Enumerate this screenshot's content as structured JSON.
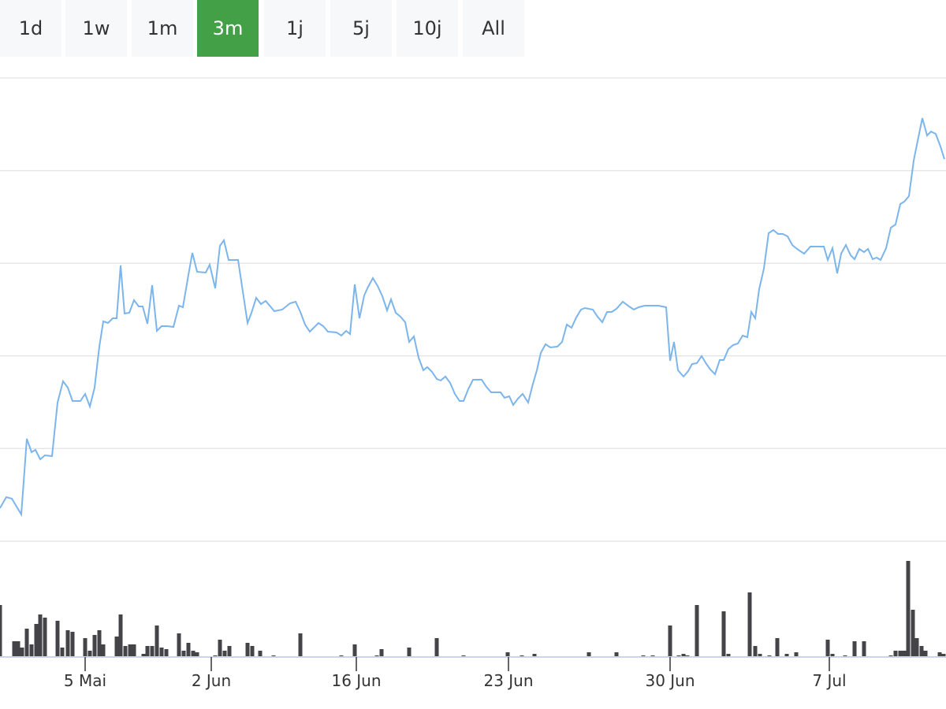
{
  "buttons": [
    "1d",
    "1w",
    "1m",
    "3m",
    "1j",
    "5j",
    "10j",
    "All"
  ],
  "active_button": 3,
  "chart_data": {
    "type": "stock",
    "grid": true,
    "xlim": [
      0,
      1200
    ],
    "xticks": [
      {
        "value": 108,
        "label": "5 Mai"
      },
      {
        "value": 268,
        "label": "2 Jun"
      },
      {
        "value": 452,
        "label": "16 Jun"
      },
      {
        "value": 645,
        "label": "23 Jun"
      },
      {
        "value": 850,
        "label": "30 Jun"
      },
      {
        "value": 1052,
        "label": "7 Jul"
      }
    ],
    "ylim": [
      0,
      588
    ],
    "yticks": [
      0,
      117.6,
      235.2,
      352.8,
      470.4,
      588
    ],
    "x": [
      0,
      8,
      15,
      27,
      34,
      40,
      45,
      51,
      57,
      66,
      73,
      80,
      86,
      92,
      102,
      108,
      114,
      120,
      126,
      131,
      137,
      143,
      148,
      153,
      158,
      164,
      170,
      176,
      181,
      187,
      193,
      199,
      205,
      212,
      220,
      227,
      232,
      239,
      244,
      250,
      261,
      266,
      273,
      279,
      284,
      290,
      302,
      308,
      314,
      319,
      325,
      331,
      337,
      348,
      358,
      368,
      375,
      381,
      387,
      393,
      404,
      410,
      416,
      427,
      433,
      439,
      444,
      450,
      456,
      462,
      467,
      473,
      479,
      485,
      491,
      496,
      502,
      508,
      514,
      519,
      525,
      531,
      537,
      542,
      548,
      554,
      559,
      565,
      571,
      577,
      583,
      588,
      594,
      600,
      611,
      617,
      623,
      635,
      640,
      646,
      651,
      657,
      663,
      670,
      675,
      681,
      686,
      692,
      698,
      707,
      713,
      719,
      725,
      731,
      737,
      742,
      752,
      758,
      764,
      770,
      776,
      782,
      790,
      798,
      804,
      810,
      818,
      830,
      835,
      845,
      850,
      855,
      860,
      867,
      873,
      878,
      884,
      890,
      896,
      901,
      907,
      913,
      918,
      924,
      930,
      936,
      942,
      948,
      953,
      958,
      963,
      969,
      975,
      981,
      987,
      993,
      999,
      1005,
      1011,
      1020,
      1028,
      1045,
      1050,
      1056,
      1062,
      1067,
      1073,
      1079,
      1084,
      1090,
      1096,
      1101,
      1107,
      1112,
      1117,
      1124,
      1130,
      1136,
      1142,
      1147,
      1153,
      1159,
      1164,
      1170,
      1176,
      1181,
      1187,
      1193,
      1198
    ],
    "series": [
      {
        "color": "#7cb5ec",
        "values": [
          42,
          56,
          54,
          34,
          130,
          113,
          116,
          104,
          109,
          108,
          176,
          203,
          195,
          178,
          178,
          187,
          171,
          195,
          247,
          279,
          277,
          283,
          283,
          350,
          289,
          290,
          306,
          298,
          298,
          276,
          325,
          267,
          273,
          273,
          272,
          299,
          297,
          338,
          366,
          342,
          341,
          351,
          321,
          375,
          382,
          357,
          357,
          317,
          277,
          290,
          309,
          301,
          305,
          292,
          294,
          302,
          304,
          291,
          275,
          266,
          277,
          273,
          266,
          265,
          261,
          267,
          263,
          326,
          283,
          312,
          323,
          334,
          324,
          311,
          293,
          307,
          290,
          285,
          278,
          253,
          260,
          233,
          217,
          221,
          215,
          206,
          204,
          209,
          201,
          187,
          178,
          178,
          193,
          205,
          205,
          196,
          189,
          189,
          182,
          184,
          173,
          181,
          187,
          176,
          196,
          217,
          239,
          250,
          246,
          247,
          253,
          275,
          271,
          284,
          294,
          296,
          294,
          285,
          278,
          291,
          291,
          295,
          304,
          298,
          294,
          297,
          299,
          299,
          299,
          297,
          229,
          253,
          217,
          209,
          216,
          225,
          226,
          235,
          225,
          218,
          212,
          230,
          230,
          244,
          249,
          251,
          261,
          259,
          291,
          283,
          320,
          346,
          391,
          395,
          390,
          390,
          387,
          376,
          371,
          365,
          374,
          374,
          357,
          372,
          340,
          365,
          376,
          363,
          358,
          371,
          367,
          371,
          358,
          360,
          357,
          372,
          398,
          402,
          428,
          431,
          438,
          483,
          508,
          537,
          515,
          520,
          517,
          501,
          485
        ]
      }
    ],
    "volume": {
      "color": "#434348",
      "ylim": [
        0,
        146
      ],
      "x": [
        0,
        18,
        23,
        28,
        34,
        40,
        46,
        51,
        57,
        73,
        79,
        86,
        92,
        108,
        114,
        120,
        126,
        131,
        148,
        153,
        159,
        165,
        170,
        182,
        187,
        193,
        199,
        205,
        211,
        227,
        233,
        239,
        245,
        250,
        273,
        279,
        285,
        291,
        314,
        320,
        330,
        347,
        381,
        433,
        450,
        478,
        484,
        519,
        554,
        588,
        644,
        662,
        678,
        747,
        782,
        816,
        828,
        850,
        861,
        867,
        872,
        884,
        918,
        924,
        951,
        958,
        964,
        976,
        986,
        998,
        1010,
        1050,
        1056,
        1072,
        1084,
        1096,
        1130,
        1136,
        1142,
        1147,
        1152,
        1158,
        1163,
        1169,
        1174,
        1192,
        1197
      ],
      "values": [
        65,
        19,
        19,
        11,
        35,
        15,
        41,
        53,
        49,
        45,
        11,
        33,
        31,
        23,
        7,
        27,
        33,
        15,
        25,
        53,
        13,
        15,
        15,
        3,
        13,
        13,
        39,
        11,
        9,
        29,
        7,
        17,
        7,
        5,
        1,
        21,
        7,
        13,
        17,
        13,
        7,
        1,
        29,
        1,
        15,
        1,
        9,
        11,
        23,
        1,
        5,
        1,
        3,
        5,
        5,
        1,
        1,
        39,
        1,
        3,
        1,
        65,
        57,
        3,
        81,
        13,
        3,
        1,
        23,
        3,
        5,
        21,
        3,
        1,
        19,
        19,
        1,
        7,
        7,
        7,
        121,
        59,
        23,
        13,
        7,
        5,
        3
      ]
    }
  }
}
